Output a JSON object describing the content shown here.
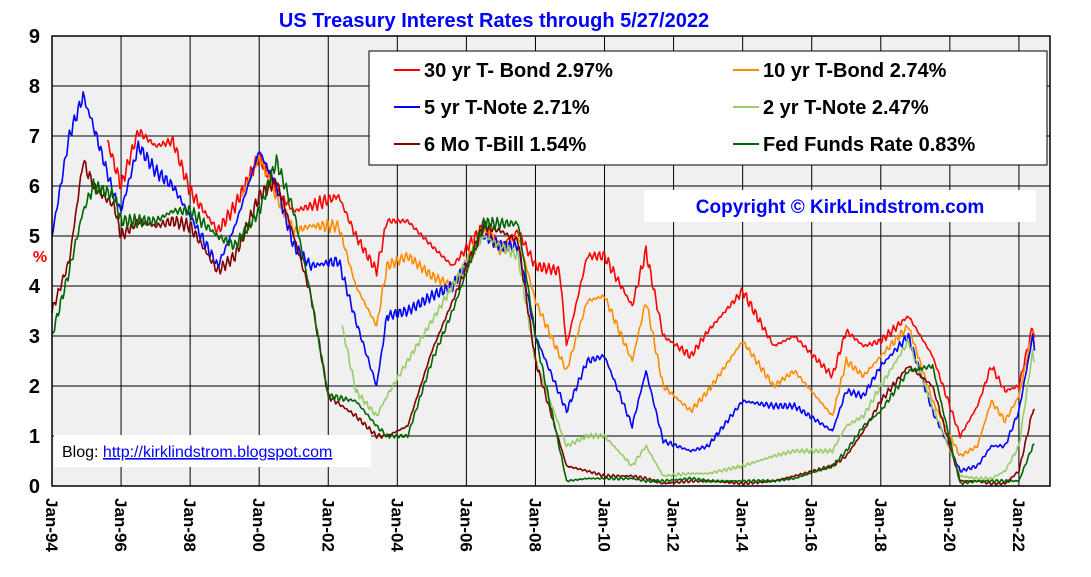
{
  "chart_data": {
    "type": "line",
    "title": "US Treasury Interest Rates through 5/27/2022",
    "ylabel": "%",
    "ylim": [
      0,
      9
    ],
    "yticks": [
      0,
      1,
      2,
      3,
      4,
      5,
      6,
      7,
      8,
      9
    ],
    "xlim": [
      1994.0,
      2022.9
    ],
    "xticks": [
      {
        "label": "Jan-94",
        "year": 1994
      },
      {
        "label": "Jan-96",
        "year": 1996
      },
      {
        "label": "Jan-98",
        "year": 1998
      },
      {
        "label": "Jan-00",
        "year": 2000
      },
      {
        "label": "Jan-02",
        "year": 2002
      },
      {
        "label": "Jan-04",
        "year": 2004
      },
      {
        "label": "Jan-06",
        "year": 2006
      },
      {
        "label": "Jan-08",
        "year": 2008
      },
      {
        "label": "Jan-10",
        "year": 2010
      },
      {
        "label": "Jan-12",
        "year": 2012
      },
      {
        "label": "Jan-14",
        "year": 2014
      },
      {
        "label": "Jan-16",
        "year": 2016
      },
      {
        "label": "Jan-18",
        "year": 2018
      },
      {
        "label": "Jan-20",
        "year": 2020
      },
      {
        "label": "Jan-22",
        "year": 2022
      }
    ],
    "grid": true,
    "legend_position": "top-right",
    "copyright": "Copyright ©  KirkLindstrom.com",
    "blog": {
      "label": "Blog:",
      "link": "http://kirklindstrom.blogspot.com"
    },
    "series": [
      {
        "name": "30 yr T- Bond 2.97%",
        "color": "#ff0000",
        "points": [
          [
            1995.6,
            6.9
          ],
          [
            1996.0,
            6.0
          ],
          [
            1996.5,
            7.1
          ],
          [
            1997.0,
            6.8
          ],
          [
            1997.5,
            6.9
          ],
          [
            1998.0,
            5.9
          ],
          [
            1998.8,
            5.1
          ],
          [
            1999.3,
            5.6
          ],
          [
            2000.0,
            6.6
          ],
          [
            2000.5,
            5.9
          ],
          [
            2001.0,
            5.5
          ],
          [
            2001.5,
            5.6
          ],
          [
            2002.3,
            5.8
          ],
          [
            2002.8,
            5.0
          ],
          [
            2003.4,
            4.3
          ],
          [
            2003.7,
            5.3
          ],
          [
            2004.3,
            5.3
          ],
          [
            2005.0,
            4.8
          ],
          [
            2005.6,
            4.4
          ],
          [
            2006.5,
            5.2
          ],
          [
            2007.0,
            4.8
          ],
          [
            2007.5,
            5.1
          ],
          [
            2008.0,
            4.4
          ],
          [
            2008.7,
            4.3
          ],
          [
            2008.9,
            2.8
          ],
          [
            2009.5,
            4.6
          ],
          [
            2010.0,
            4.6
          ],
          [
            2010.8,
            3.6
          ],
          [
            2011.2,
            4.7
          ],
          [
            2011.7,
            3.0
          ],
          [
            2012.5,
            2.6
          ],
          [
            2013.0,
            3.1
          ],
          [
            2014.0,
            3.9
          ],
          [
            2014.9,
            2.8
          ],
          [
            2015.5,
            3.0
          ],
          [
            2016.6,
            2.2
          ],
          [
            2017.0,
            3.1
          ],
          [
            2017.5,
            2.8
          ],
          [
            2018.0,
            2.9
          ],
          [
            2018.8,
            3.4
          ],
          [
            2019.5,
            2.6
          ],
          [
            2020.3,
            1.0
          ],
          [
            2020.8,
            1.6
          ],
          [
            2021.2,
            2.4
          ],
          [
            2021.6,
            1.9
          ],
          [
            2022.0,
            2.0
          ],
          [
            2022.4,
            3.2
          ],
          [
            2022.45,
            2.97
          ]
        ]
      },
      {
        "name": "10 yr T-Bond 2.74%",
        "color": "#ff8c00",
        "points": [
          [
            1999.5,
            5.8
          ],
          [
            2000.0,
            6.6
          ],
          [
            2000.5,
            5.8
          ],
          [
            2001.0,
            5.1
          ],
          [
            2001.5,
            5.2
          ],
          [
            2002.3,
            5.2
          ],
          [
            2002.8,
            4.0
          ],
          [
            2003.4,
            3.2
          ],
          [
            2003.7,
            4.4
          ],
          [
            2004.3,
            4.6
          ],
          [
            2005.0,
            4.2
          ],
          [
            2005.6,
            4.0
          ],
          [
            2006.5,
            5.2
          ],
          [
            2007.0,
            4.7
          ],
          [
            2007.5,
            5.0
          ],
          [
            2008.0,
            3.7
          ],
          [
            2008.9,
            2.3
          ],
          [
            2009.5,
            3.7
          ],
          [
            2010.0,
            3.8
          ],
          [
            2010.8,
            2.5
          ],
          [
            2011.2,
            3.7
          ],
          [
            2011.7,
            2.0
          ],
          [
            2012.5,
            1.5
          ],
          [
            2013.0,
            1.9
          ],
          [
            2014.0,
            2.9
          ],
          [
            2014.9,
            2.0
          ],
          [
            2015.5,
            2.3
          ],
          [
            2016.6,
            1.4
          ],
          [
            2017.0,
            2.5
          ],
          [
            2017.5,
            2.2
          ],
          [
            2018.0,
            2.6
          ],
          [
            2018.8,
            3.2
          ],
          [
            2019.5,
            1.7
          ],
          [
            2020.3,
            0.6
          ],
          [
            2020.8,
            0.8
          ],
          [
            2021.2,
            1.7
          ],
          [
            2021.6,
            1.3
          ],
          [
            2022.0,
            1.8
          ],
          [
            2022.4,
            3.1
          ],
          [
            2022.45,
            2.74
          ]
        ]
      },
      {
        "name": "5 yr T-Note 2.71%",
        "color": "#0000ff",
        "points": [
          [
            1994.0,
            5.0
          ],
          [
            1994.5,
            7.0
          ],
          [
            1994.9,
            7.8
          ],
          [
            1995.2,
            7.2
          ],
          [
            1995.8,
            5.8
          ],
          [
            1996.0,
            5.5
          ],
          [
            1996.5,
            6.8
          ],
          [
            1997.0,
            6.3
          ],
          [
            1997.5,
            6.0
          ],
          [
            1998.0,
            5.4
          ],
          [
            1998.8,
            4.4
          ],
          [
            1999.3,
            5.2
          ],
          [
            2000.0,
            6.7
          ],
          [
            2000.5,
            6.0
          ],
          [
            2001.0,
            4.8
          ],
          [
            2001.5,
            4.4
          ],
          [
            2002.3,
            4.5
          ],
          [
            2002.8,
            3.3
          ],
          [
            2003.4,
            2.0
          ],
          [
            2003.7,
            3.4
          ],
          [
            2004.3,
            3.5
          ],
          [
            2005.0,
            3.8
          ],
          [
            2005.6,
            4.0
          ],
          [
            2006.5,
            5.0
          ],
          [
            2007.0,
            4.8
          ],
          [
            2007.5,
            4.8
          ],
          [
            2008.0,
            3.0
          ],
          [
            2008.9,
            1.5
          ],
          [
            2009.5,
            2.5
          ],
          [
            2010.0,
            2.6
          ],
          [
            2010.8,
            1.2
          ],
          [
            2011.2,
            2.3
          ],
          [
            2011.7,
            0.9
          ],
          [
            2012.5,
            0.7
          ],
          [
            2013.0,
            0.8
          ],
          [
            2014.0,
            1.7
          ],
          [
            2014.9,
            1.6
          ],
          [
            2015.5,
            1.6
          ],
          [
            2016.6,
            1.1
          ],
          [
            2017.0,
            1.9
          ],
          [
            2017.5,
            1.8
          ],
          [
            2018.0,
            2.4
          ],
          [
            2018.8,
            3.0
          ],
          [
            2019.5,
            1.5
          ],
          [
            2020.3,
            0.3
          ],
          [
            2020.8,
            0.4
          ],
          [
            2021.2,
            0.8
          ],
          [
            2021.6,
            0.8
          ],
          [
            2022.0,
            1.5
          ],
          [
            2022.4,
            3.0
          ],
          [
            2022.45,
            2.71
          ]
        ]
      },
      {
        "name": "2 yr T-Note 2.47%",
        "color": "#99cc66",
        "points": [
          [
            2002.4,
            3.2
          ],
          [
            2002.8,
            1.9
          ],
          [
            2003.4,
            1.4
          ],
          [
            2003.7,
            1.8
          ],
          [
            2004.3,
            2.5
          ],
          [
            2005.0,
            3.3
          ],
          [
            2005.6,
            4.0
          ],
          [
            2006.5,
            5.0
          ],
          [
            2007.0,
            4.8
          ],
          [
            2007.5,
            4.6
          ],
          [
            2008.0,
            2.5
          ],
          [
            2008.9,
            0.8
          ],
          [
            2009.5,
            1.0
          ],
          [
            2010.0,
            1.0
          ],
          [
            2010.8,
            0.4
          ],
          [
            2011.2,
            0.8
          ],
          [
            2011.7,
            0.2
          ],
          [
            2012.5,
            0.25
          ],
          [
            2013.0,
            0.25
          ],
          [
            2014.0,
            0.4
          ],
          [
            2014.9,
            0.6
          ],
          [
            2015.5,
            0.7
          ],
          [
            2016.6,
            0.7
          ],
          [
            2017.0,
            1.2
          ],
          [
            2017.5,
            1.4
          ],
          [
            2018.0,
            2.0
          ],
          [
            2018.8,
            2.9
          ],
          [
            2019.5,
            1.6
          ],
          [
            2020.3,
            0.2
          ],
          [
            2020.8,
            0.15
          ],
          [
            2021.2,
            0.15
          ],
          [
            2021.6,
            0.3
          ],
          [
            2022.0,
            0.8
          ],
          [
            2022.4,
            2.7
          ],
          [
            2022.45,
            2.47
          ]
        ]
      },
      {
        "name": "6 Mo T-Bill 1.54%",
        "color": "#800000",
        "points": [
          [
            1994.0,
            3.5
          ],
          [
            1994.5,
            4.5
          ],
          [
            1994.9,
            6.5
          ],
          [
            1995.2,
            6.0
          ],
          [
            1995.8,
            5.6
          ],
          [
            1996.0,
            5.0
          ],
          [
            1996.5,
            5.3
          ],
          [
            1997.0,
            5.2
          ],
          [
            1997.5,
            5.3
          ],
          [
            1998.0,
            5.2
          ],
          [
            1998.8,
            4.3
          ],
          [
            1999.3,
            4.6
          ],
          [
            2000.0,
            5.8
          ],
          [
            2000.5,
            6.1
          ],
          [
            2001.0,
            5.0
          ],
          [
            2001.5,
            3.8
          ],
          [
            2002.0,
            1.8
          ],
          [
            2002.8,
            1.4
          ],
          [
            2003.4,
            1.0
          ],
          [
            2003.7,
            1.0
          ],
          [
            2004.3,
            1.2
          ],
          [
            2005.0,
            2.7
          ],
          [
            2005.6,
            3.7
          ],
          [
            2006.5,
            5.2
          ],
          [
            2007.0,
            5.1
          ],
          [
            2007.5,
            4.9
          ],
          [
            2008.0,
            2.5
          ],
          [
            2008.9,
            0.4
          ],
          [
            2009.5,
            0.3
          ],
          [
            2010.0,
            0.2
          ],
          [
            2010.8,
            0.2
          ],
          [
            2011.2,
            0.15
          ],
          [
            2011.7,
            0.05
          ],
          [
            2012.5,
            0.1
          ],
          [
            2013.0,
            0.1
          ],
          [
            2014.0,
            0.05
          ],
          [
            2014.9,
            0.1
          ],
          [
            2015.5,
            0.2
          ],
          [
            2016.6,
            0.4
          ],
          [
            2017.0,
            0.6
          ],
          [
            2017.5,
            1.1
          ],
          [
            2018.0,
            1.7
          ],
          [
            2018.8,
            2.4
          ],
          [
            2019.5,
            2.0
          ],
          [
            2020.3,
            0.1
          ],
          [
            2020.8,
            0.1
          ],
          [
            2021.2,
            0.05
          ],
          [
            2021.6,
            0.05
          ],
          [
            2022.0,
            0.3
          ],
          [
            2022.4,
            1.5
          ],
          [
            2022.45,
            1.54
          ]
        ]
      },
      {
        "name": "Fed Funds Rate 0.83%",
        "color": "#006400",
        "points": [
          [
            1994.0,
            3.0
          ],
          [
            1994.5,
            4.3
          ],
          [
            1994.9,
            5.5
          ],
          [
            1995.2,
            6.0
          ],
          [
            1995.8,
            5.8
          ],
          [
            1996.0,
            5.3
          ],
          [
            1996.5,
            5.3
          ],
          [
            1997.0,
            5.3
          ],
          [
            1997.5,
            5.5
          ],
          [
            1998.0,
            5.5
          ],
          [
            1998.8,
            5.0
          ],
          [
            1999.3,
            4.8
          ],
          [
            2000.0,
            5.5
          ],
          [
            2000.5,
            6.5
          ],
          [
            2001.0,
            5.5
          ],
          [
            2001.5,
            3.8
          ],
          [
            2002.0,
            1.8
          ],
          [
            2002.8,
            1.7
          ],
          [
            2003.4,
            1.2
          ],
          [
            2003.7,
            1.0
          ],
          [
            2004.3,
            1.0
          ],
          [
            2005.0,
            2.5
          ],
          [
            2005.6,
            3.5
          ],
          [
            2006.5,
            5.25
          ],
          [
            2007.0,
            5.25
          ],
          [
            2007.5,
            5.25
          ],
          [
            2008.0,
            3.0
          ],
          [
            2008.9,
            0.1
          ],
          [
            2009.5,
            0.15
          ],
          [
            2010.0,
            0.15
          ],
          [
            2010.8,
            0.15
          ],
          [
            2011.2,
            0.1
          ],
          [
            2011.7,
            0.1
          ],
          [
            2012.5,
            0.15
          ],
          [
            2013.0,
            0.1
          ],
          [
            2014.0,
            0.1
          ],
          [
            2014.9,
            0.1
          ],
          [
            2015.5,
            0.15
          ],
          [
            2016.6,
            0.4
          ],
          [
            2017.0,
            0.7
          ],
          [
            2017.5,
            1.2
          ],
          [
            2018.0,
            1.5
          ],
          [
            2018.8,
            2.3
          ],
          [
            2019.5,
            2.4
          ],
          [
            2020.3,
            0.05
          ],
          [
            2020.8,
            0.1
          ],
          [
            2021.2,
            0.1
          ],
          [
            2021.6,
            0.1
          ],
          [
            2022.0,
            0.1
          ],
          [
            2022.4,
            0.8
          ],
          [
            2022.45,
            0.83
          ]
        ]
      }
    ]
  },
  "colors": {
    "background": "#ffffff",
    "plot_area": "#f0f0f0",
    "grid": "#000000",
    "title": "#0000ff",
    "copyright": "#0000ff",
    "ylabel": "#ff0000",
    "link": "#0000ff"
  }
}
